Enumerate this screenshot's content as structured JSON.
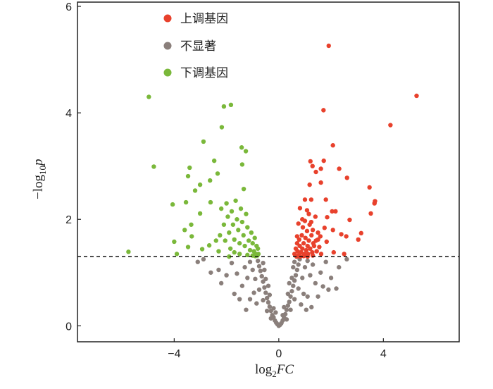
{
  "chart_data": {
    "type": "scatter",
    "title": "",
    "xlabel": "log2FC",
    "xlabel_parts": {
      "base": "log",
      "sub": "2",
      "var": "FC"
    },
    "ylabel": "-log10p",
    "ylabel_parts": {
      "base": "−log",
      "sub": "10",
      "var": "p"
    },
    "xlim": [
      -7.7,
      6.9
    ],
    "ylim": [
      -0.3,
      6.08
    ],
    "xticks": [
      -4,
      0,
      4
    ],
    "xtick_labels": [
      "−4",
      "0",
      "4"
    ],
    "yticks": [
      0,
      2,
      4,
      6
    ],
    "ytick_labels": [
      "0",
      "2",
      "4",
      "6"
    ],
    "threshold_y": 1.3,
    "legend": {
      "position": "top-left",
      "entries": [
        {
          "label": "上调基因",
          "color": "#e8412c"
        },
        {
          "label": "不显著",
          "color": "#8a7f7b"
        },
        {
          "label": "下调基因",
          "color": "#7ab83a"
        }
      ]
    },
    "series": [
      {
        "name": "上调基因",
        "color": "#e8412c",
        "points": [
          [
            1.91,
            5.26
          ],
          [
            5.27,
            4.32
          ],
          [
            4.27,
            3.77
          ],
          [
            1.71,
            4.05
          ],
          [
            2.07,
            3.39
          ],
          [
            1.21,
            3.09
          ],
          [
            1.72,
            3.1
          ],
          [
            1.29,
            3.0
          ],
          [
            1.61,
            2.95
          ],
          [
            1.42,
            2.89
          ],
          [
            2.31,
            2.95
          ],
          [
            2.61,
            2.78
          ],
          [
            1.18,
            2.65
          ],
          [
            1.61,
            2.69
          ],
          [
            3.47,
            2.6
          ],
          [
            3.68,
            2.34
          ],
          [
            3.66,
            2.3
          ],
          [
            1.0,
            2.37
          ],
          [
            1.24,
            2.37
          ],
          [
            1.8,
            2.37
          ],
          [
            0.81,
            2.21
          ],
          [
            1.08,
            2.17
          ],
          [
            2.04,
            2.15
          ],
          [
            2.17,
            2.15
          ],
          [
            3.52,
            2.11
          ],
          [
            1.85,
            2.04
          ],
          [
            2.71,
            1.99
          ],
          [
            0.75,
            1.92
          ],
          [
            1.0,
            1.97
          ],
          [
            1.24,
            1.95
          ],
          [
            1.75,
            1.84
          ],
          [
            2.07,
            1.8
          ],
          [
            2.39,
            1.72
          ],
          [
            2.58,
            1.68
          ],
          [
            3.15,
            1.74
          ],
          [
            3.04,
            1.62
          ],
          [
            1.59,
            1.68
          ],
          [
            1.42,
            1.6
          ],
          [
            1.5,
            1.62
          ],
          [
            1.83,
            1.58
          ],
          [
            1.32,
            1.55
          ],
          [
            2.1,
            1.38
          ],
          [
            2.5,
            1.35
          ],
          [
            0.6,
            1.35
          ],
          [
            0.65,
            1.45
          ],
          [
            0.7,
            1.55
          ],
          [
            0.72,
            1.4
          ],
          [
            0.78,
            1.62
          ],
          [
            0.8,
            1.5
          ],
          [
            0.85,
            1.38
          ],
          [
            0.88,
            1.7
          ],
          [
            0.9,
            1.45
          ],
          [
            0.92,
            1.85
          ],
          [
            0.95,
            1.55
          ],
          [
            0.98,
            1.35
          ],
          [
            1.02,
            1.65
          ],
          [
            1.05,
            1.42
          ],
          [
            1.08,
            1.78
          ],
          [
            1.1,
            1.5
          ],
          [
            1.12,
            1.35
          ],
          [
            1.15,
            1.6
          ],
          [
            1.18,
            1.9
          ],
          [
            1.2,
            1.45
          ],
          [
            1.25,
            1.7
          ],
          [
            1.28,
            1.38
          ],
          [
            1.3,
            1.8
          ],
          [
            1.35,
            1.5
          ],
          [
            1.4,
            2.05
          ],
          [
            1.45,
            1.4
          ],
          [
            1.5,
            1.75
          ],
          [
            1.55,
            1.48
          ],
          [
            1.62,
            1.35
          ],
          [
            0.68,
            1.3
          ],
          [
            0.75,
            1.32
          ],
          [
            0.82,
            1.3
          ],
          [
            0.95,
            1.31
          ],
          [
            1.1,
            1.3
          ],
          [
            1.3,
            1.32
          ],
          [
            0.7,
            1.68
          ],
          [
            0.9,
            2.0
          ],
          [
            1.15,
            2.1
          ]
        ]
      },
      {
        "name": "下调基因",
        "color": "#7ab83a",
        "points": [
          [
            -4.97,
            4.3
          ],
          [
            -4.78,
            2.99
          ],
          [
            -5.75,
            1.39
          ],
          [
            -4.0,
            1.58
          ],
          [
            -4.06,
            2.28
          ],
          [
            -3.41,
            2.97
          ],
          [
            -3.47,
            2.81
          ],
          [
            -2.88,
            3.46
          ],
          [
            -2.1,
            4.12
          ],
          [
            -1.83,
            4.15
          ],
          [
            -2.18,
            3.73
          ],
          [
            -1.42,
            3.35
          ],
          [
            -1.26,
            3.28
          ],
          [
            -2.47,
            3.1
          ],
          [
            -2.34,
            2.86
          ],
          [
            -2.63,
            2.73
          ],
          [
            -1.4,
            3.03
          ],
          [
            -3.01,
            2.65
          ],
          [
            -3.2,
            2.54
          ],
          [
            -3.55,
            2.32
          ],
          [
            -2.61,
            2.32
          ],
          [
            -3.01,
            2.11
          ],
          [
            -3.33,
            1.68
          ],
          [
            -3.6,
            1.8
          ],
          [
            -3.47,
            1.48
          ],
          [
            -2.93,
            1.44
          ],
          [
            -2.66,
            1.51
          ],
          [
            -1.34,
            2.57
          ],
          [
            -3.9,
            1.35
          ],
          [
            -3.35,
            1.9
          ],
          [
            -2.4,
            1.6
          ],
          [
            -2.2,
            2.2
          ],
          [
            -2.1,
            1.9
          ],
          [
            -2.05,
            1.6
          ],
          [
            -2.0,
            2.3
          ],
          [
            -1.95,
            2.05
          ],
          [
            -1.9,
            1.75
          ],
          [
            -1.85,
            1.45
          ],
          [
            -1.8,
            2.15
          ],
          [
            -1.75,
            1.9
          ],
          [
            -1.7,
            1.62
          ],
          [
            -1.65,
            2.35
          ],
          [
            -1.6,
            2.0
          ],
          [
            -1.55,
            1.8
          ],
          [
            -1.5,
            1.55
          ],
          [
            -1.45,
            2.2
          ],
          [
            -1.4,
            1.95
          ],
          [
            -1.35,
            1.7
          ],
          [
            -1.3,
            1.5
          ],
          [
            -1.25,
            2.1
          ],
          [
            -1.2,
            1.85
          ],
          [
            -1.15,
            1.6
          ],
          [
            -1.1,
            1.42
          ],
          [
            -1.05,
            1.75
          ],
          [
            -1.0,
            1.55
          ],
          [
            -0.95,
            1.4
          ],
          [
            -0.92,
            1.65
          ],
          [
            -0.88,
            1.35
          ],
          [
            -0.85,
            1.5
          ],
          [
            -0.82,
            1.32
          ],
          [
            -0.8,
            1.45
          ],
          [
            -0.78,
            1.35
          ],
          [
            -1.0,
            1.32
          ],
          [
            -1.2,
            1.33
          ],
          [
            -0.9,
            1.31
          ],
          [
            -1.5,
            1.35
          ],
          [
            -1.7,
            1.38
          ],
          [
            -2.25,
            1.7
          ],
          [
            -2.3,
            1.4
          ],
          [
            -1.9,
            1.3
          ]
        ]
      },
      {
        "name": "不显著",
        "color": "#8a7f7b",
        "points": [
          [
            0,
            0.0
          ],
          [
            0.05,
            0.02
          ],
          [
            -0.05,
            0.03
          ],
          [
            0.1,
            0.05
          ],
          [
            -0.1,
            0.06
          ],
          [
            0.15,
            0.1
          ],
          [
            -0.15,
            0.1
          ],
          [
            0.2,
            0.15
          ],
          [
            -0.2,
            0.16
          ],
          [
            0.25,
            0.22
          ],
          [
            -0.25,
            0.2
          ],
          [
            0.3,
            0.3
          ],
          [
            -0.3,
            0.28
          ],
          [
            0.35,
            0.38
          ],
          [
            -0.35,
            0.36
          ],
          [
            0.4,
            0.45
          ],
          [
            -0.4,
            0.44
          ],
          [
            0.45,
            0.55
          ],
          [
            -0.45,
            0.52
          ],
          [
            0.5,
            0.65
          ],
          [
            -0.5,
            0.62
          ],
          [
            0.55,
            0.75
          ],
          [
            -0.55,
            0.72
          ],
          [
            0.6,
            0.85
          ],
          [
            -0.6,
            0.83
          ],
          [
            0.65,
            0.95
          ],
          [
            -0.65,
            0.93
          ],
          [
            0.7,
            1.05
          ],
          [
            -0.7,
            1.03
          ],
          [
            0.75,
            1.15
          ],
          [
            -0.75,
            1.12
          ],
          [
            0.8,
            1.25
          ],
          [
            -0.8,
            1.22
          ],
          [
            0.3,
            0.12
          ],
          [
            -0.3,
            0.14
          ],
          [
            0.45,
            0.3
          ],
          [
            -0.45,
            0.28
          ],
          [
            0.6,
            0.5
          ],
          [
            -0.6,
            0.48
          ],
          [
            0.75,
            0.7
          ],
          [
            -0.75,
            0.68
          ],
          [
            0.9,
            0.9
          ],
          [
            -0.9,
            0.88
          ],
          [
            1.0,
            1.1
          ],
          [
            -1.0,
            1.05
          ],
          [
            1.1,
            1.22
          ],
          [
            -1.1,
            1.2
          ],
          [
            0.95,
            0.6
          ],
          [
            -0.95,
            0.62
          ],
          [
            1.2,
            0.95
          ],
          [
            -1.2,
            0.9
          ],
          [
            1.3,
            1.15
          ],
          [
            -1.3,
            1.1
          ],
          [
            1.4,
            0.8
          ],
          [
            -1.4,
            0.75
          ],
          [
            1.6,
            1.0
          ],
          [
            -1.6,
            0.98
          ],
          [
            1.8,
            1.2
          ],
          [
            -1.8,
            1.18
          ],
          [
            2.0,
            0.9
          ],
          [
            -2.0,
            0.95
          ],
          [
            1.69,
            0.74
          ],
          [
            1.9,
            0.68
          ],
          [
            2.3,
            1.1
          ],
          [
            -2.3,
            1.05
          ],
          [
            2.6,
            1.25
          ],
          [
            -2.88,
            1.25
          ],
          [
            -3.1,
            1.2
          ],
          [
            -2.6,
            1.0
          ],
          [
            0.2,
            0.35
          ],
          [
            -0.2,
            0.33
          ],
          [
            0.35,
            0.6
          ],
          [
            -0.35,
            0.58
          ],
          [
            0.5,
            0.9
          ],
          [
            -0.5,
            0.88
          ],
          [
            0.6,
            1.2
          ],
          [
            -0.6,
            1.18
          ],
          [
            0.85,
            0.4
          ],
          [
            -0.85,
            0.42
          ],
          [
            1.1,
            0.55
          ],
          [
            -1.1,
            0.5
          ],
          [
            1.5,
            0.55
          ],
          [
            -1.5,
            0.5
          ],
          [
            1.25,
            0.35
          ],
          [
            -1.25,
            0.3
          ],
          [
            0.15,
            0.2
          ],
          [
            -0.12,
            0.25
          ],
          [
            0.4,
            0.8
          ],
          [
            -0.4,
            0.75
          ],
          [
            0.55,
            1.1
          ],
          [
            -0.55,
            1.05
          ],
          [
            1.05,
            0.3
          ],
          [
            -2.2,
            0.8
          ],
          [
            2.2,
            0.7
          ],
          [
            -1.7,
            0.6
          ]
        ]
      }
    ]
  }
}
